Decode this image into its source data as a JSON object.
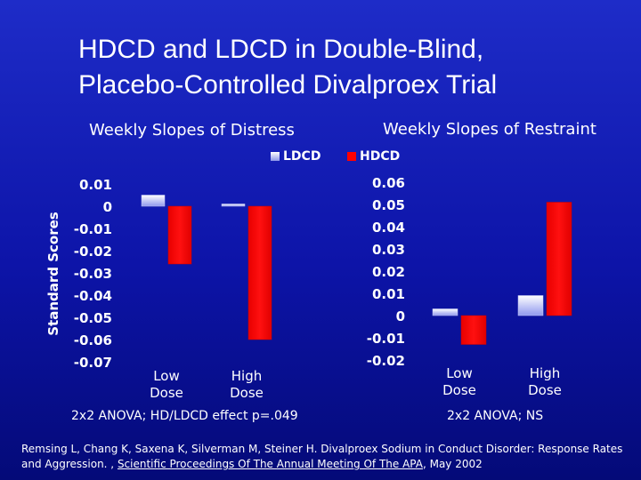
{
  "slide": {
    "title_line1": "HDCD and LDCD in Double-Blind,",
    "title_line2": "Placebo-Controlled Divalproex Trial",
    "ylabel": "Standard Scores",
    "legend": {
      "ldcd": "LDCD",
      "hdcd": "HDCD",
      "ldcd_color": "#e8ecff",
      "hdcd_color": "#ff0000"
    },
    "citation_part1": "Remsing L, Chang K, Saxena K, Silverman M, Steiner H. Divalproex Sodium in Conduct Disorder: Response Rates and Aggression. , ",
    "citation_source": "Scientific Proceedings Of The Annual Meeting Of The APA",
    "citation_part2": ", May 2002"
  },
  "chart_data": [
    {
      "type": "bar",
      "title": "Weekly Slopes of Distress",
      "categories": [
        "Low\nDose",
        "High\nDose"
      ],
      "series": [
        {
          "name": "LDCD",
          "values": [
            0.005,
            0.001
          ]
        },
        {
          "name": "HDCD",
          "values": [
            -0.026,
            -0.06
          ]
        }
      ],
      "ylim": [
        -0.07,
        0.01
      ],
      "yticks": [
        0.01,
        0,
        -0.01,
        -0.02,
        -0.03,
        -0.04,
        -0.05,
        -0.06,
        -0.07
      ],
      "ytick_labels": [
        "0.01",
        "0",
        "-0.01",
        "-0.02",
        "-0.03",
        "-0.04",
        "-0.05",
        "-0.06",
        "-0.07"
      ],
      "note": "2x2 ANOVA; HD/LDCD effect p=.049"
    },
    {
      "type": "bar",
      "title": "Weekly Slopes of Restraint",
      "categories": [
        "Low\nDose",
        "High\nDose"
      ],
      "series": [
        {
          "name": "LDCD",
          "values": [
            0.003,
            0.009
          ]
        },
        {
          "name": "HDCD",
          "values": [
            -0.013,
            0.051
          ]
        }
      ],
      "ylim": [
        -0.02,
        0.06
      ],
      "yticks": [
        0.06,
        0.05,
        0.04,
        0.03,
        0.02,
        0.01,
        0,
        -0.01,
        -0.02
      ],
      "ytick_labels": [
        "0.06",
        "0.05",
        "0.04",
        "0.03",
        "0.02",
        "0.01",
        "0",
        "-0.01",
        "-0.02"
      ],
      "note": "2x2 ANOVA; NS"
    }
  ]
}
